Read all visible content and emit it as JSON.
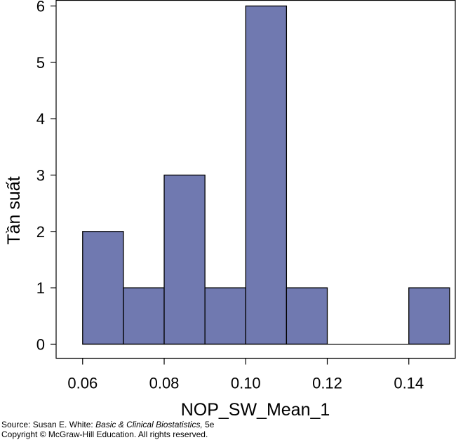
{
  "chart_data": {
    "type": "bar",
    "subtype": "histogram",
    "xlabel": "NOP_SW_Mean_1",
    "ylabel": "Tần suất",
    "bins": [
      {
        "start": 0.06,
        "end": 0.07,
        "count": 2
      },
      {
        "start": 0.07,
        "end": 0.08,
        "count": 1
      },
      {
        "start": 0.08,
        "end": 0.09,
        "count": 3
      },
      {
        "start": 0.09,
        "end": 0.1,
        "count": 1
      },
      {
        "start": 0.1,
        "end": 0.11,
        "count": 6
      },
      {
        "start": 0.11,
        "end": 0.12,
        "count": 1
      },
      {
        "start": 0.12,
        "end": 0.13,
        "count": 0
      },
      {
        "start": 0.13,
        "end": 0.14,
        "count": 0
      },
      {
        "start": 0.14,
        "end": 0.15,
        "count": 1
      }
    ],
    "xlim": [
      0.0535,
      0.1514
    ],
    "ylim": [
      -0.25,
      6.1
    ],
    "x_ticks": [
      0.06,
      0.08,
      0.1,
      0.12,
      0.14
    ],
    "x_tick_labels": [
      "0.06",
      "0.08",
      "0.10",
      "0.12",
      "0.14"
    ],
    "y_ticks": [
      0,
      1,
      2,
      3,
      4,
      5,
      6
    ],
    "y_tick_labels": [
      "0",
      "1",
      "2",
      "3",
      "4",
      "5",
      "6"
    ],
    "grid": false,
    "bar_color": "#7079b0",
    "bar_edge_color": "#000000"
  },
  "source": {
    "prefix": "Source: Susan E. White: ",
    "title": "Basic & Clinical Biostatistics,",
    "suffix": " 5e",
    "copyright": "Copyright © McGraw-Hill Education. All rights reserved."
  }
}
